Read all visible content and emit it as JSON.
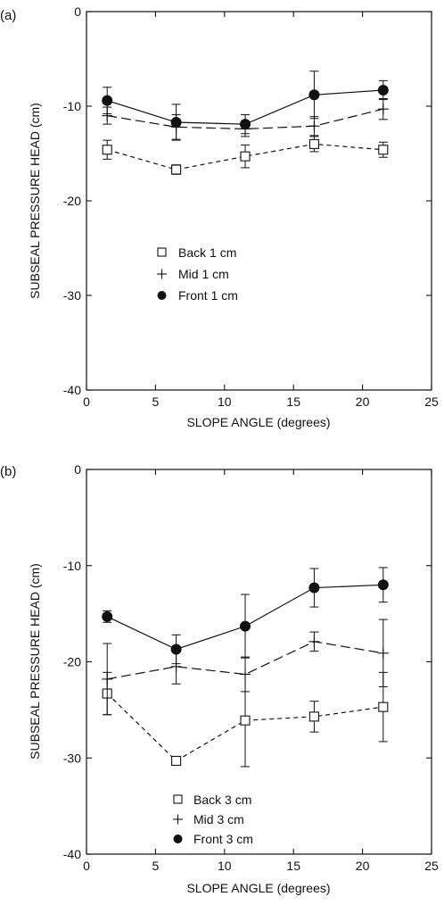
{
  "chart_data": [
    {
      "type": "line",
      "panel_label": "(a)",
      "xlabel": "SLOPE ANGLE (degrees)",
      "ylabel": "SUBSEAL PRESSURE HEAD (cm)",
      "xlim": [
        0,
        25
      ],
      "ylim": [
        -40,
        0
      ],
      "xticks": [
        0,
        5,
        10,
        15,
        20,
        25
      ],
      "yticks": [
        0,
        -10,
        -20,
        -30,
        -40
      ],
      "grid": false,
      "legend_placement": "center",
      "x": [
        1.5,
        6.5,
        11.5,
        16.5,
        21.5
      ],
      "series": [
        {
          "name": "Back 1 cm",
          "marker": "open-square",
          "line": "short-dash",
          "values": [
            -14.6,
            -16.7,
            -15.3,
            -14.0,
            -14.6
          ],
          "errors": [
            1.0,
            0.5,
            1.2,
            0.8,
            0.8
          ]
        },
        {
          "name": "Mid 1 cm",
          "marker": "plus",
          "line": "long-dash",
          "values": [
            -11.0,
            -12.2,
            -12.4,
            -12.1,
            -10.3
          ],
          "errors": [
            0.9,
            1.3,
            0.8,
            1.0,
            1.1
          ]
        },
        {
          "name": "Front 1 cm",
          "marker": "filled-circle",
          "line": "solid",
          "values": [
            -9.4,
            -11.7,
            -11.9,
            -8.8,
            -8.3
          ],
          "errors": [
            1.4,
            1.9,
            1.0,
            2.5,
            1.0
          ]
        }
      ]
    },
    {
      "type": "line",
      "panel_label": "(b)",
      "xlabel": "SLOPE ANGLE (degrees)",
      "ylabel": "SUBSEAL PRESSURE HEAD (cm)",
      "xlim": [
        0,
        25
      ],
      "ylim": [
        -40,
        0
      ],
      "xticks": [
        0,
        5,
        10,
        15,
        20,
        25
      ],
      "yticks": [
        0,
        -10,
        -20,
        -30,
        -40
      ],
      "grid": false,
      "legend_placement": "bottom-center",
      "x": [
        1.5,
        6.5,
        11.5,
        16.5,
        21.5
      ],
      "series": [
        {
          "name": "Back 3 cm",
          "marker": "open-square",
          "line": "short-dash",
          "values": [
            -23.3,
            -30.3,
            -26.1,
            -25.7,
            -24.7
          ],
          "errors": [
            2.2,
            0.4,
            4.8,
            1.6,
            3.6
          ]
        },
        {
          "name": "Mid 3 cm",
          "marker": "plus",
          "line": "long-dash",
          "values": [
            -21.8,
            -20.5,
            -21.3,
            -17.9,
            -19.1
          ],
          "errors": [
            3.7,
            1.8,
            1.8,
            1.0,
            3.5
          ]
        },
        {
          "name": "Front 3 cm",
          "marker": "filled-circle",
          "line": "solid",
          "values": [
            -15.3,
            -18.7,
            -16.3,
            -12.3,
            -12.0
          ],
          "errors": [
            0.6,
            1.5,
            3.3,
            2.0,
            1.8
          ]
        }
      ]
    }
  ]
}
